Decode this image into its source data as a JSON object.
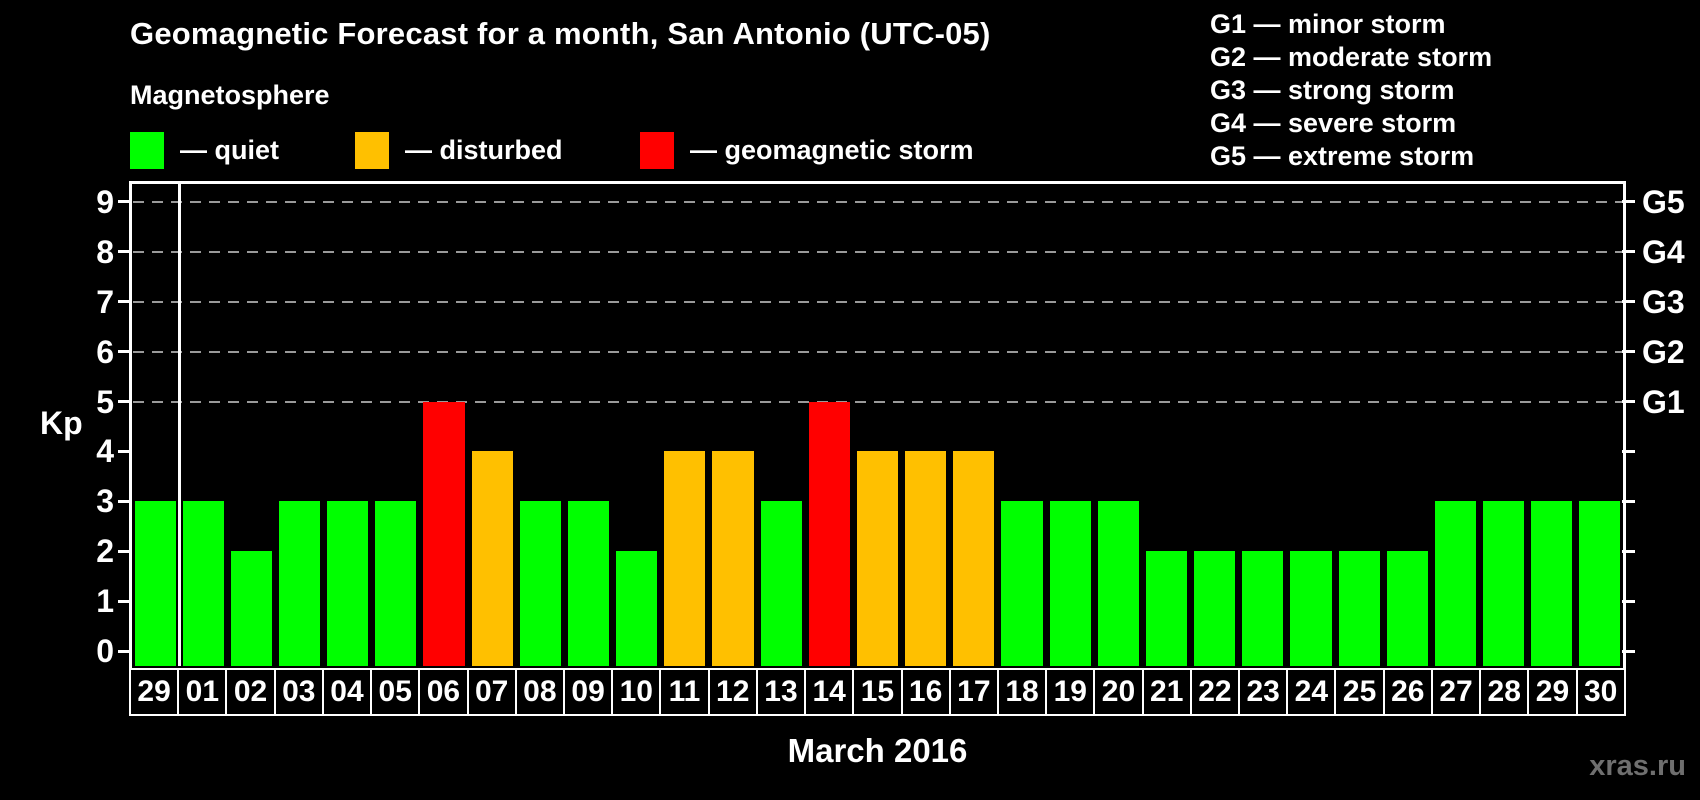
{
  "title": "Geomagnetic Forecast for a month, San Antonio (UTC-05)",
  "subtitle": "Magnetosphere",
  "legend": {
    "items": [
      {
        "name": "quiet",
        "label": "— quiet",
        "color": "#00ff00"
      },
      {
        "name": "disturbed",
        "label": "— disturbed",
        "color": "#ffc000"
      },
      {
        "name": "storm",
        "label": "— geomagnetic storm",
        "color": "#ff0000"
      }
    ]
  },
  "g_legend": {
    "lines": [
      "G1 — minor storm",
      "G2 — moderate storm",
      "G3 — strong storm",
      "G4 — severe storm",
      "G5 — extreme storm"
    ]
  },
  "axes": {
    "kp_label": "Kp",
    "month_label": "March 2016",
    "left_tick_labels": [
      "0",
      "1",
      "2",
      "3",
      "4",
      "5",
      "6",
      "7",
      "8",
      "9"
    ]
  },
  "watermark": "xras.ru",
  "chart_data": {
    "type": "bar",
    "title": "Geomagnetic Forecast for a month, San Antonio (UTC-05)",
    "xlabel": "March 2016",
    "ylabel": "Kp",
    "ylim": [
      0,
      9
    ],
    "grid": "dashed horizontal at Kp 5-9",
    "gridline_values": [
      5,
      6,
      7,
      8,
      9
    ],
    "legend_position": "top-left (magnetosphere states), top-right (G-scale)",
    "categories": [
      "29",
      "01",
      "02",
      "03",
      "04",
      "05",
      "06",
      "07",
      "08",
      "09",
      "10",
      "11",
      "12",
      "13",
      "14",
      "15",
      "16",
      "17",
      "18",
      "19",
      "20",
      "21",
      "22",
      "23",
      "24",
      "25",
      "26",
      "27",
      "28",
      "29",
      "30"
    ],
    "values": [
      3,
      3,
      2,
      3,
      3,
      3,
      5,
      4,
      3,
      3,
      2,
      4,
      4,
      3,
      5,
      4,
      4,
      4,
      3,
      3,
      3,
      2,
      2,
      2,
      2,
      2,
      2,
      3,
      3,
      3,
      3
    ],
    "statuses": [
      "quiet",
      "quiet",
      "quiet",
      "quiet",
      "quiet",
      "quiet",
      "storm",
      "disturbed",
      "quiet",
      "quiet",
      "quiet",
      "disturbed",
      "disturbed",
      "quiet",
      "storm",
      "disturbed",
      "disturbed",
      "disturbed",
      "quiet",
      "quiet",
      "quiet",
      "quiet",
      "quiet",
      "quiet",
      "quiet",
      "quiet",
      "quiet",
      "quiet",
      "quiet",
      "quiet",
      "quiet"
    ],
    "colors": {
      "quiet": "#00ff00",
      "disturbed": "#ffc000",
      "storm": "#ff0000"
    },
    "color_rules": {
      "quiet_max_kp": 3,
      "disturbed_kp": 4,
      "storm_min_kp": 5
    },
    "separator_after_index": 0,
    "right_axis_labels": [
      {
        "value": 5,
        "label": "G1"
      },
      {
        "value": 6,
        "label": "G2"
      },
      {
        "value": 7,
        "label": "G3"
      },
      {
        "value": 8,
        "label": "G4"
      },
      {
        "value": 9,
        "label": "G5"
      }
    ]
  }
}
